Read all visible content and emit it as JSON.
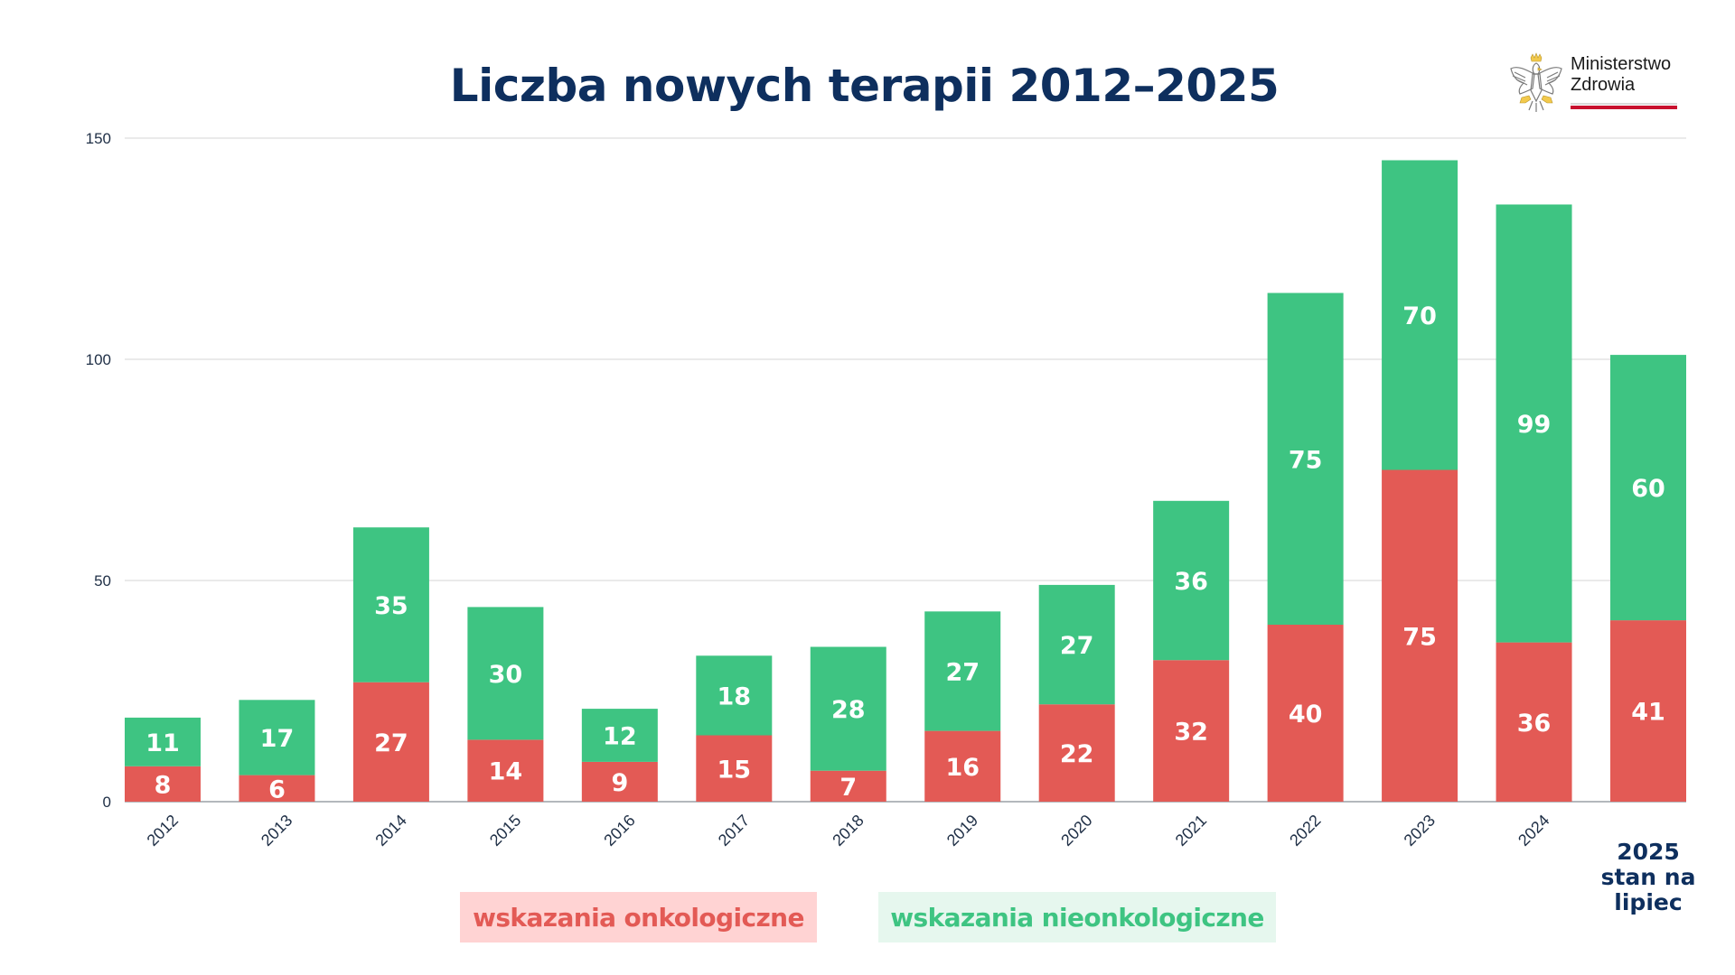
{
  "header": {
    "title": "Liczba nowych terapii 2012–2025",
    "logo": {
      "icon": "polish-eagle-emblem",
      "line1": "Ministerstwo",
      "line2": "Zdrowia"
    }
  },
  "colors": {
    "onkologiczne": "#E35A55",
    "nieonkologiczne": "#3EC482",
    "title": "#0E2F5E",
    "legend_onko_bg": "#FFD3D3",
    "legend_nieonko_bg": "#E6F7EE"
  },
  "legend": {
    "onkologiczne": "wskazania onkologiczne",
    "nieonkologiczne": "wskazania nieonkologiczne"
  },
  "last_category_label": [
    "2025",
    "stan na",
    "lipiec"
  ],
  "chart_data": {
    "type": "bar",
    "stacked": true,
    "title": "Liczba nowych terapii 2012–2025",
    "xlabel": "",
    "ylabel": "",
    "ylim": [
      0,
      150
    ],
    "yticks": [
      0,
      50,
      100,
      150
    ],
    "grid": true,
    "legend_position": "bottom-center",
    "categories": [
      "2012",
      "2013",
      "2014",
      "2015",
      "2016",
      "2017",
      "2018",
      "2019",
      "2020",
      "2021",
      "2022",
      "2023",
      "2024",
      "2025 stan na lipiec"
    ],
    "series": [
      {
        "name": "wskazania onkologiczne",
        "color": "#E35A55",
        "values": [
          8,
          6,
          27,
          14,
          9,
          15,
          7,
          16,
          22,
          32,
          40,
          75,
          36,
          41
        ]
      },
      {
        "name": "wskazania nieonkologiczne",
        "color": "#3EC482",
        "values": [
          11,
          17,
          35,
          30,
          12,
          18,
          28,
          27,
          27,
          36,
          75,
          70,
          99,
          60
        ]
      }
    ]
  }
}
